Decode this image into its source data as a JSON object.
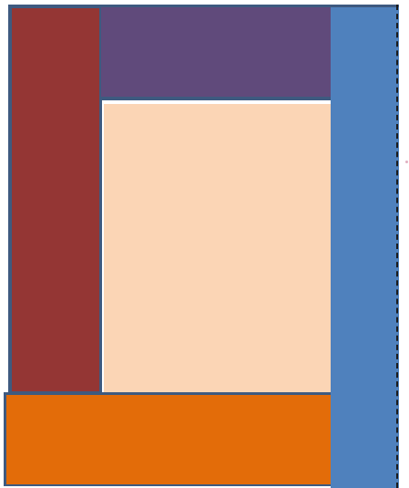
{
  "diagram": {
    "panels": {
      "left": {
        "color": "#943634"
      },
      "top": {
        "color": "#604a7b"
      },
      "center": {
        "color": "#fbd5b5"
      },
      "bottom": {
        "color": "#e36c09"
      },
      "right": {
        "color": "#4f81bd"
      }
    },
    "border_color": "#3e5a80",
    "guide_line": {
      "style": "dashed",
      "color": "#1a1a1a"
    },
    "marker_color": "#e0b0c0"
  }
}
